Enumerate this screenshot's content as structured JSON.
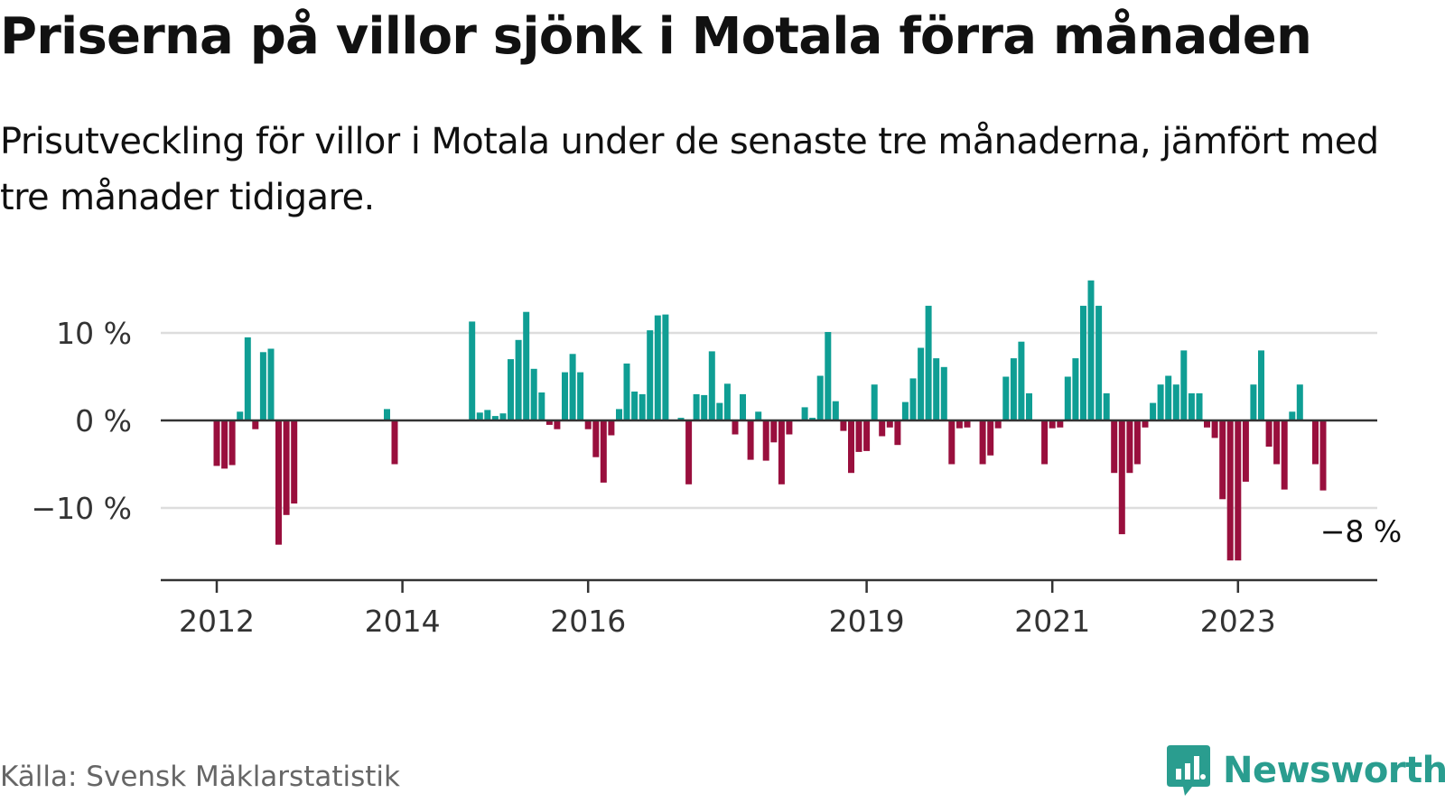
{
  "title": "Priserna på villor sjönk i Motala förra månaden",
  "subtitle": "Prisutveckling för villor i Motala under de senaste tre månaderna, jämfört med tre månader tidigare.",
  "source": "Källa: Svensk Mäklarstatistik",
  "brand": {
    "name": "Newsworthy",
    "icon": "newsworthy-logo-icon"
  },
  "colors": {
    "positive": "#0f9e94",
    "negative": "#990f3d",
    "grid": "#dddddd",
    "axis": "#333333"
  },
  "chart_data": {
    "type": "bar",
    "title": "Priserna på villor sjönk i Motala förra månaden",
    "xlabel": "",
    "ylabel": "",
    "ylim": [
      -18,
      15
    ],
    "y_ticks": [
      {
        "value": 10,
        "label": "10 %"
      },
      {
        "value": 0,
        "label": "0 %"
      },
      {
        "value": -10,
        "label": "−10 %"
      }
    ],
    "x_ticks": [
      {
        "value": "2012-01",
        "label": "2012"
      },
      {
        "value": "2014-01",
        "label": "2014"
      },
      {
        "value": "2016-01",
        "label": "2016"
      },
      {
        "value": "2019-01",
        "label": "2019"
      },
      {
        "value": "2021-01",
        "label": "2021"
      },
      {
        "value": "2023-01",
        "label": "2023"
      }
    ],
    "grid": true,
    "legend": "none",
    "end_label": "−8 %",
    "series": [
      {
        "name": "",
        "points": [
          {
            "x": "2012-01",
            "y": -5.2
          },
          {
            "x": "2012-02",
            "y": -5.5
          },
          {
            "x": "2012-03",
            "y": -5.1
          },
          {
            "x": "2012-04",
            "y": 1.0
          },
          {
            "x": "2012-05",
            "y": 9.5
          },
          {
            "x": "2012-06",
            "y": -1.0
          },
          {
            "x": "2012-07",
            "y": 7.8
          },
          {
            "x": "2012-08",
            "y": 8.2
          },
          {
            "x": "2012-09",
            "y": -14.2
          },
          {
            "x": "2012-10",
            "y": -10.8
          },
          {
            "x": "2012-11",
            "y": -9.5
          },
          {
            "x": "2013-11",
            "y": 1.3
          },
          {
            "x": "2013-12",
            "y": -5.0
          },
          {
            "x": "2014-10",
            "y": 11.3
          },
          {
            "x": "2014-11",
            "y": 0.9
          },
          {
            "x": "2014-12",
            "y": 1.2
          },
          {
            "x": "2015-01",
            "y": 0.5
          },
          {
            "x": "2015-02",
            "y": 0.8
          },
          {
            "x": "2015-03",
            "y": 7.0
          },
          {
            "x": "2015-04",
            "y": 9.2
          },
          {
            "x": "2015-05",
            "y": 12.4
          },
          {
            "x": "2015-06",
            "y": 5.9
          },
          {
            "x": "2015-07",
            "y": 3.2
          },
          {
            "x": "2015-08",
            "y": -0.5
          },
          {
            "x": "2015-09",
            "y": -1.0
          },
          {
            "x": "2015-10",
            "y": 5.5
          },
          {
            "x": "2015-11",
            "y": 7.6
          },
          {
            "x": "2015-12",
            "y": 5.5
          },
          {
            "x": "2016-01",
            "y": -1.0
          },
          {
            "x": "2016-02",
            "y": -4.2
          },
          {
            "x": "2016-03",
            "y": -7.1
          },
          {
            "x": "2016-04",
            "y": -1.7
          },
          {
            "x": "2016-05",
            "y": 1.3
          },
          {
            "x": "2016-06",
            "y": 6.5
          },
          {
            "x": "2016-07",
            "y": 3.3
          },
          {
            "x": "2016-08",
            "y": 3.0
          },
          {
            "x": "2016-09",
            "y": 10.3
          },
          {
            "x": "2016-10",
            "y": 12.0
          },
          {
            "x": "2016-11",
            "y": 12.1
          },
          {
            "x": "2017-01",
            "y": 0.3
          },
          {
            "x": "2017-02",
            "y": -7.3
          },
          {
            "x": "2017-03",
            "y": 3.0
          },
          {
            "x": "2017-04",
            "y": 2.9
          },
          {
            "x": "2017-05",
            "y": 7.9
          },
          {
            "x": "2017-06",
            "y": 2.0
          },
          {
            "x": "2017-07",
            "y": 4.2
          },
          {
            "x": "2017-08",
            "y": -1.6
          },
          {
            "x": "2017-09",
            "y": 3.0
          },
          {
            "x": "2017-10",
            "y": -4.5
          },
          {
            "x": "2017-11",
            "y": 1.0
          },
          {
            "x": "2017-12",
            "y": -4.6
          },
          {
            "x": "2018-01",
            "y": -2.5
          },
          {
            "x": "2018-02",
            "y": -7.3
          },
          {
            "x": "2018-03",
            "y": -1.6
          },
          {
            "x": "2018-05",
            "y": 1.5
          },
          {
            "x": "2018-06",
            "y": 0.3
          },
          {
            "x": "2018-07",
            "y": 5.1
          },
          {
            "x": "2018-08",
            "y": 10.1
          },
          {
            "x": "2018-09",
            "y": 2.2
          },
          {
            "x": "2018-10",
            "y": -1.2
          },
          {
            "x": "2018-11",
            "y": -6.0
          },
          {
            "x": "2018-12",
            "y": -3.6
          },
          {
            "x": "2019-01",
            "y": -3.5
          },
          {
            "x": "2019-02",
            "y": 4.1
          },
          {
            "x": "2019-03",
            "y": -1.8
          },
          {
            "x": "2019-04",
            "y": -0.8
          },
          {
            "x": "2019-05",
            "y": -2.8
          },
          {
            "x": "2019-06",
            "y": 2.1
          },
          {
            "x": "2019-07",
            "y": 4.8
          },
          {
            "x": "2019-08",
            "y": 8.3
          },
          {
            "x": "2019-09",
            "y": 13.1
          },
          {
            "x": "2019-10",
            "y": 7.1
          },
          {
            "x": "2019-11",
            "y": 6.1
          },
          {
            "x": "2019-12",
            "y": -5.0
          },
          {
            "x": "2020-01",
            "y": -0.9
          },
          {
            "x": "2020-02",
            "y": -0.8
          },
          {
            "x": "2020-04",
            "y": -5.0
          },
          {
            "x": "2020-05",
            "y": -4.0
          },
          {
            "x": "2020-06",
            "y": -0.9
          },
          {
            "x": "2020-07",
            "y": 5.0
          },
          {
            "x": "2020-08",
            "y": 7.1
          },
          {
            "x": "2020-09",
            "y": 9.0
          },
          {
            "x": "2020-10",
            "y": 3.1
          },
          {
            "x": "2020-12",
            "y": -5.0
          },
          {
            "x": "2021-01",
            "y": -0.9
          },
          {
            "x": "2021-02",
            "y": -0.8
          },
          {
            "x": "2021-03",
            "y": 5.0
          },
          {
            "x": "2021-04",
            "y": 7.1
          },
          {
            "x": "2021-05",
            "y": 13.1
          },
          {
            "x": "2021-06",
            "y": 16.0
          },
          {
            "x": "2021-07",
            "y": 13.1
          },
          {
            "x": "2021-08",
            "y": 3.1
          },
          {
            "x": "2021-09",
            "y": -6.0
          },
          {
            "x": "2021-10",
            "y": -13.0
          },
          {
            "x": "2021-11",
            "y": -6.0
          },
          {
            "x": "2021-12",
            "y": -5.0
          },
          {
            "x": "2022-01",
            "y": -0.8
          },
          {
            "x": "2022-02",
            "y": 2.0
          },
          {
            "x": "2022-03",
            "y": 4.1
          },
          {
            "x": "2022-04",
            "y": 5.1
          },
          {
            "x": "2022-05",
            "y": 4.1
          },
          {
            "x": "2022-06",
            "y": 8.0
          },
          {
            "x": "2022-07",
            "y": 3.1
          },
          {
            "x": "2022-08",
            "y": 3.1
          },
          {
            "x": "2022-09",
            "y": -0.8
          },
          {
            "x": "2022-10",
            "y": -2.0
          },
          {
            "x": "2022-11",
            "y": -9.0
          },
          {
            "x": "2022-12",
            "y": -16.0
          },
          {
            "x": "2023-01",
            "y": -16.0
          },
          {
            "x": "2023-02",
            "y": -7.0
          },
          {
            "x": "2023-03",
            "y": 4.1
          },
          {
            "x": "2023-04",
            "y": 8.0
          },
          {
            "x": "2023-05",
            "y": -3.0
          },
          {
            "x": "2023-06",
            "y": -5.0
          },
          {
            "x": "2023-07",
            "y": -7.9
          },
          {
            "x": "2023-08",
            "y": 1.0
          },
          {
            "x": "2023-09",
            "y": 4.1
          },
          {
            "x": "2023-11",
            "y": -5.0
          },
          {
            "x": "2023-12",
            "y": -8.0
          }
        ]
      }
    ]
  }
}
